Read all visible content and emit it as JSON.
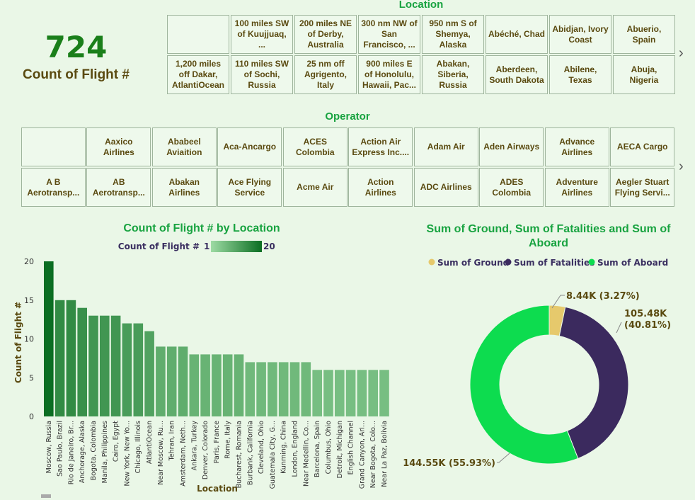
{
  "kpi": {
    "value": "724",
    "label": "Count of Flight #"
  },
  "location_slicer": {
    "title": "Location",
    "row1": [
      "",
      "100 miles SW of Kuujjuaq, ...",
      "200 miles NE of Derby, Australia",
      "300 nm NW of San Francisco, ...",
      "950 nm S of Shemya, Alaska",
      "Abéché, Chad",
      "Abidjan, Ivory Coast",
      "Abuerio, Spain"
    ],
    "row2": [
      "1,200 miles off Dakar, AtlantiOcean",
      "110 miles SW of Sochi, Russia",
      "25 nm off Agrigento, Italy",
      "900 miles E of Honolulu, Hawaii, Pac...",
      "Abakan, Siberia, Russia",
      "Aberdeen, South Dakota",
      "Abilene, Texas",
      "Abuja, Nigeria"
    ],
    "next_icon": "chevron-right-icon"
  },
  "operator_slicer": {
    "title": "Operator",
    "row1": [
      "",
      "Aaxico Airlines",
      "Ababeel Aviaition",
      "Aca-Ancargo",
      "ACES Colombia",
      "Action Air Express Inc....",
      "Adam Air",
      "Aden Airways",
      "Advance Airlines",
      "AECA Cargo"
    ],
    "row2": [
      "A B Aerotransp...",
      "AB Aerotransp...",
      "Abakan Airlines",
      "Ace Flying Service",
      "Acme Air",
      "Action Airlines",
      "ADC Airlines",
      "ADES Colombia",
      "Adventure Airlines",
      "Aegler Stuart Flying Servi..."
    ],
    "next_icon": "chevron-right-icon"
  },
  "bar_chart": {
    "title": "Count of Flight # by Location",
    "legend_label": "Count of Flight #",
    "legend_min": "1",
    "legend_max": "20"
  },
  "donut_chart": {
    "title": "Sum of Ground, Sum of Fatalities and Sum of Aboard",
    "legend": [
      "Sum of Ground",
      "Sum of Fatalities",
      "Sum of Aboard"
    ],
    "labels": [
      "8.44K (3.27%)",
      "105.48K (40.81%)",
      "144.55K (55.93%)"
    ]
  },
  "chart_data": [
    {
      "type": "bar",
      "title": "Count of Flight # by Location",
      "xlabel": "Location",
      "ylabel": "Count of Flight #",
      "ylim": [
        0,
        20
      ],
      "yticks": [
        "0",
        "5",
        "10",
        "15",
        "20"
      ],
      "categories": [
        "Moscow, Russia",
        "Sao Paulo, Brazil",
        "Rio de Janeiro, Br...",
        "Anchorage, Alaska",
        "Bogota, Colombia",
        "Manila, Philippines",
        "Cairo, Egypt",
        "New York, New Yo...",
        "Chicago, Illinois",
        "AtlantiOcean",
        "Near Moscow, Ru...",
        "Tehran, Iran",
        "Amsterdam, Neth...",
        "Ankara, Turkey",
        "Denver, Colorado",
        "Paris, France",
        "Rome, Italy",
        "Bucharest, Romania",
        "Burbank, California",
        "Cleveland, Ohio",
        "Guatemala City, G...",
        "Kunming, China",
        "London, England",
        "Near Medellin, Co...",
        "Barcelona, Spain",
        "Columbus, Ohio",
        "Detroit, Michigan",
        "English Channel",
        "Grand Canyon, Ari...",
        "Near Bogota, Colo...",
        "Near La Paz, Bolivia"
      ],
      "values": [
        20,
        15,
        15,
        14,
        13,
        13,
        13,
        12,
        12,
        11,
        9,
        9,
        9,
        8,
        8,
        8,
        8,
        8,
        7,
        7,
        7,
        7,
        7,
        7,
        6,
        6,
        6,
        6,
        6,
        6,
        6
      ],
      "grid": false,
      "colors": {
        "low": "#9edba4",
        "high": "#0b6e22"
      }
    },
    {
      "type": "pie",
      "title": "Sum of Ground, Sum of Fatalities and Sum of Aboard",
      "series": [
        {
          "name": "Sum of Ground",
          "value": 8440,
          "label": "8.44K (3.27%)",
          "color": "#e6c96c"
        },
        {
          "name": "Sum of Fatalities",
          "value": 105480,
          "label": "105.48K (40.81%)",
          "color": "#3b2a5e"
        },
        {
          "name": "Sum of Aboard",
          "value": 144550,
          "label": "144.55K (55.93%)",
          "color": "#0ddc4f"
        }
      ],
      "legend_position": "top"
    }
  ]
}
